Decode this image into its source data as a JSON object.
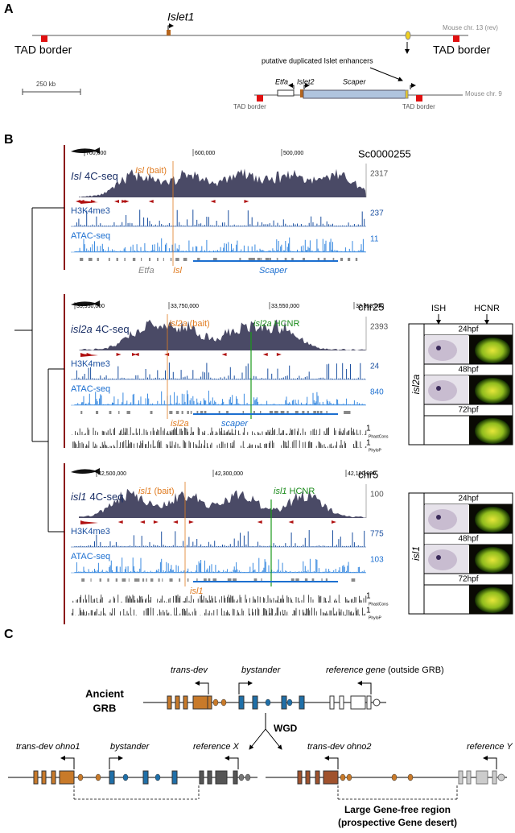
{
  "panel_a": {
    "label": "A",
    "gene": "Islet1",
    "mouse13": "Mouse chr. 13 (rev)",
    "tad_left": "TAD border",
    "tad_right": "TAD border",
    "enhancer_note": "putative duplicated Islet enhancers",
    "scale": "250 kb",
    "etfa": "Etfa",
    "islet2": "Islet2",
    "scaper": "Scaper",
    "mouse9": "Mouse chr. 9",
    "tad9_left": "TAD border",
    "tad9_right": "TAD border"
  },
  "panel_b": {
    "label": "B",
    "tracks": [
      {
        "chrom": "Sc0000255",
        "coords": [
          "700,000",
          "600,000",
          "500,000"
        ],
        "c4_gene": "Isl",
        "c4_assay": "4C-seq",
        "bait_gene": "Isl",
        "bait_suffix": "(bait)",
        "max_4c": "2317",
        "h3_label": "H3K4me3",
        "h3_max": "237",
        "atac_label": "ATAC-seq",
        "atac_max": "11",
        "genes": [
          "Etfa",
          "Isl",
          "Scaper"
        ]
      },
      {
        "chrom": "chr25",
        "coords": [
          "33,950,000",
          "33,750,000",
          "33,550,000",
          "33,350,000"
        ],
        "c4_gene": "isl2a",
        "c4_assay": "4C-seq",
        "bait_gene": "isl2a",
        "bait_suffix": "(bait)",
        "hcnr_gene": "isl2a",
        "hcnr_suffix": "HCNR",
        "max_4c": "2393",
        "h3_label": "H3K4me3",
        "h3_max": "24",
        "atac_label": "ATAC-seq",
        "atac_max": "840",
        "genes": [
          "isl2a",
          "scaper"
        ],
        "cons": [
          "1",
          "PhastCons",
          "1",
          "PhyloP"
        ]
      },
      {
        "chrom": "chr5",
        "coords": [
          "42,500,000",
          "42,300,000",
          "42,100,000"
        ],
        "c4_gene": "isl1",
        "c4_assay": "4C-seq",
        "bait_gene": "isl1",
        "bait_suffix": "(bait)",
        "hcnr_gene": "isl1",
        "hcnr_suffix": "HCNR",
        "max_4c": "100",
        "h3_label": "H3K4me3",
        "h3_max": "775",
        "atac_label": "ATAC-seq",
        "atac_max": "103",
        "genes": [
          "isl1"
        ],
        "cons": [
          "1",
          "PhastCons",
          "1",
          "PhyloP"
        ]
      }
    ],
    "ish_header": "ISH",
    "hcnr_header": "HCNR",
    "image_groups": [
      {
        "gene": "isl2a",
        "stages": [
          "24hpf",
          "48hpf",
          "72hpf"
        ]
      },
      {
        "gene": "isl1",
        "stages": [
          "24hpf",
          "48hpf",
          "72hpf"
        ]
      }
    ]
  },
  "panel_c": {
    "label": "C",
    "trans_dev": "trans-dev",
    "bystander": "bystander",
    "reference_gene": "reference gene",
    "reference_note": "(outside GRB)",
    "ancient": "Ancient",
    "grb": "GRB",
    "wgd": "WGD",
    "ohno1": "trans-dev ohno1",
    "bystander2": "bystander",
    "reference_x": "reference X",
    "ohno2": "trans-dev ohno2",
    "reference_y": "reference Y",
    "gene_free": "Large Gene-free region",
    "desert": "(prospective Gene desert)"
  }
}
